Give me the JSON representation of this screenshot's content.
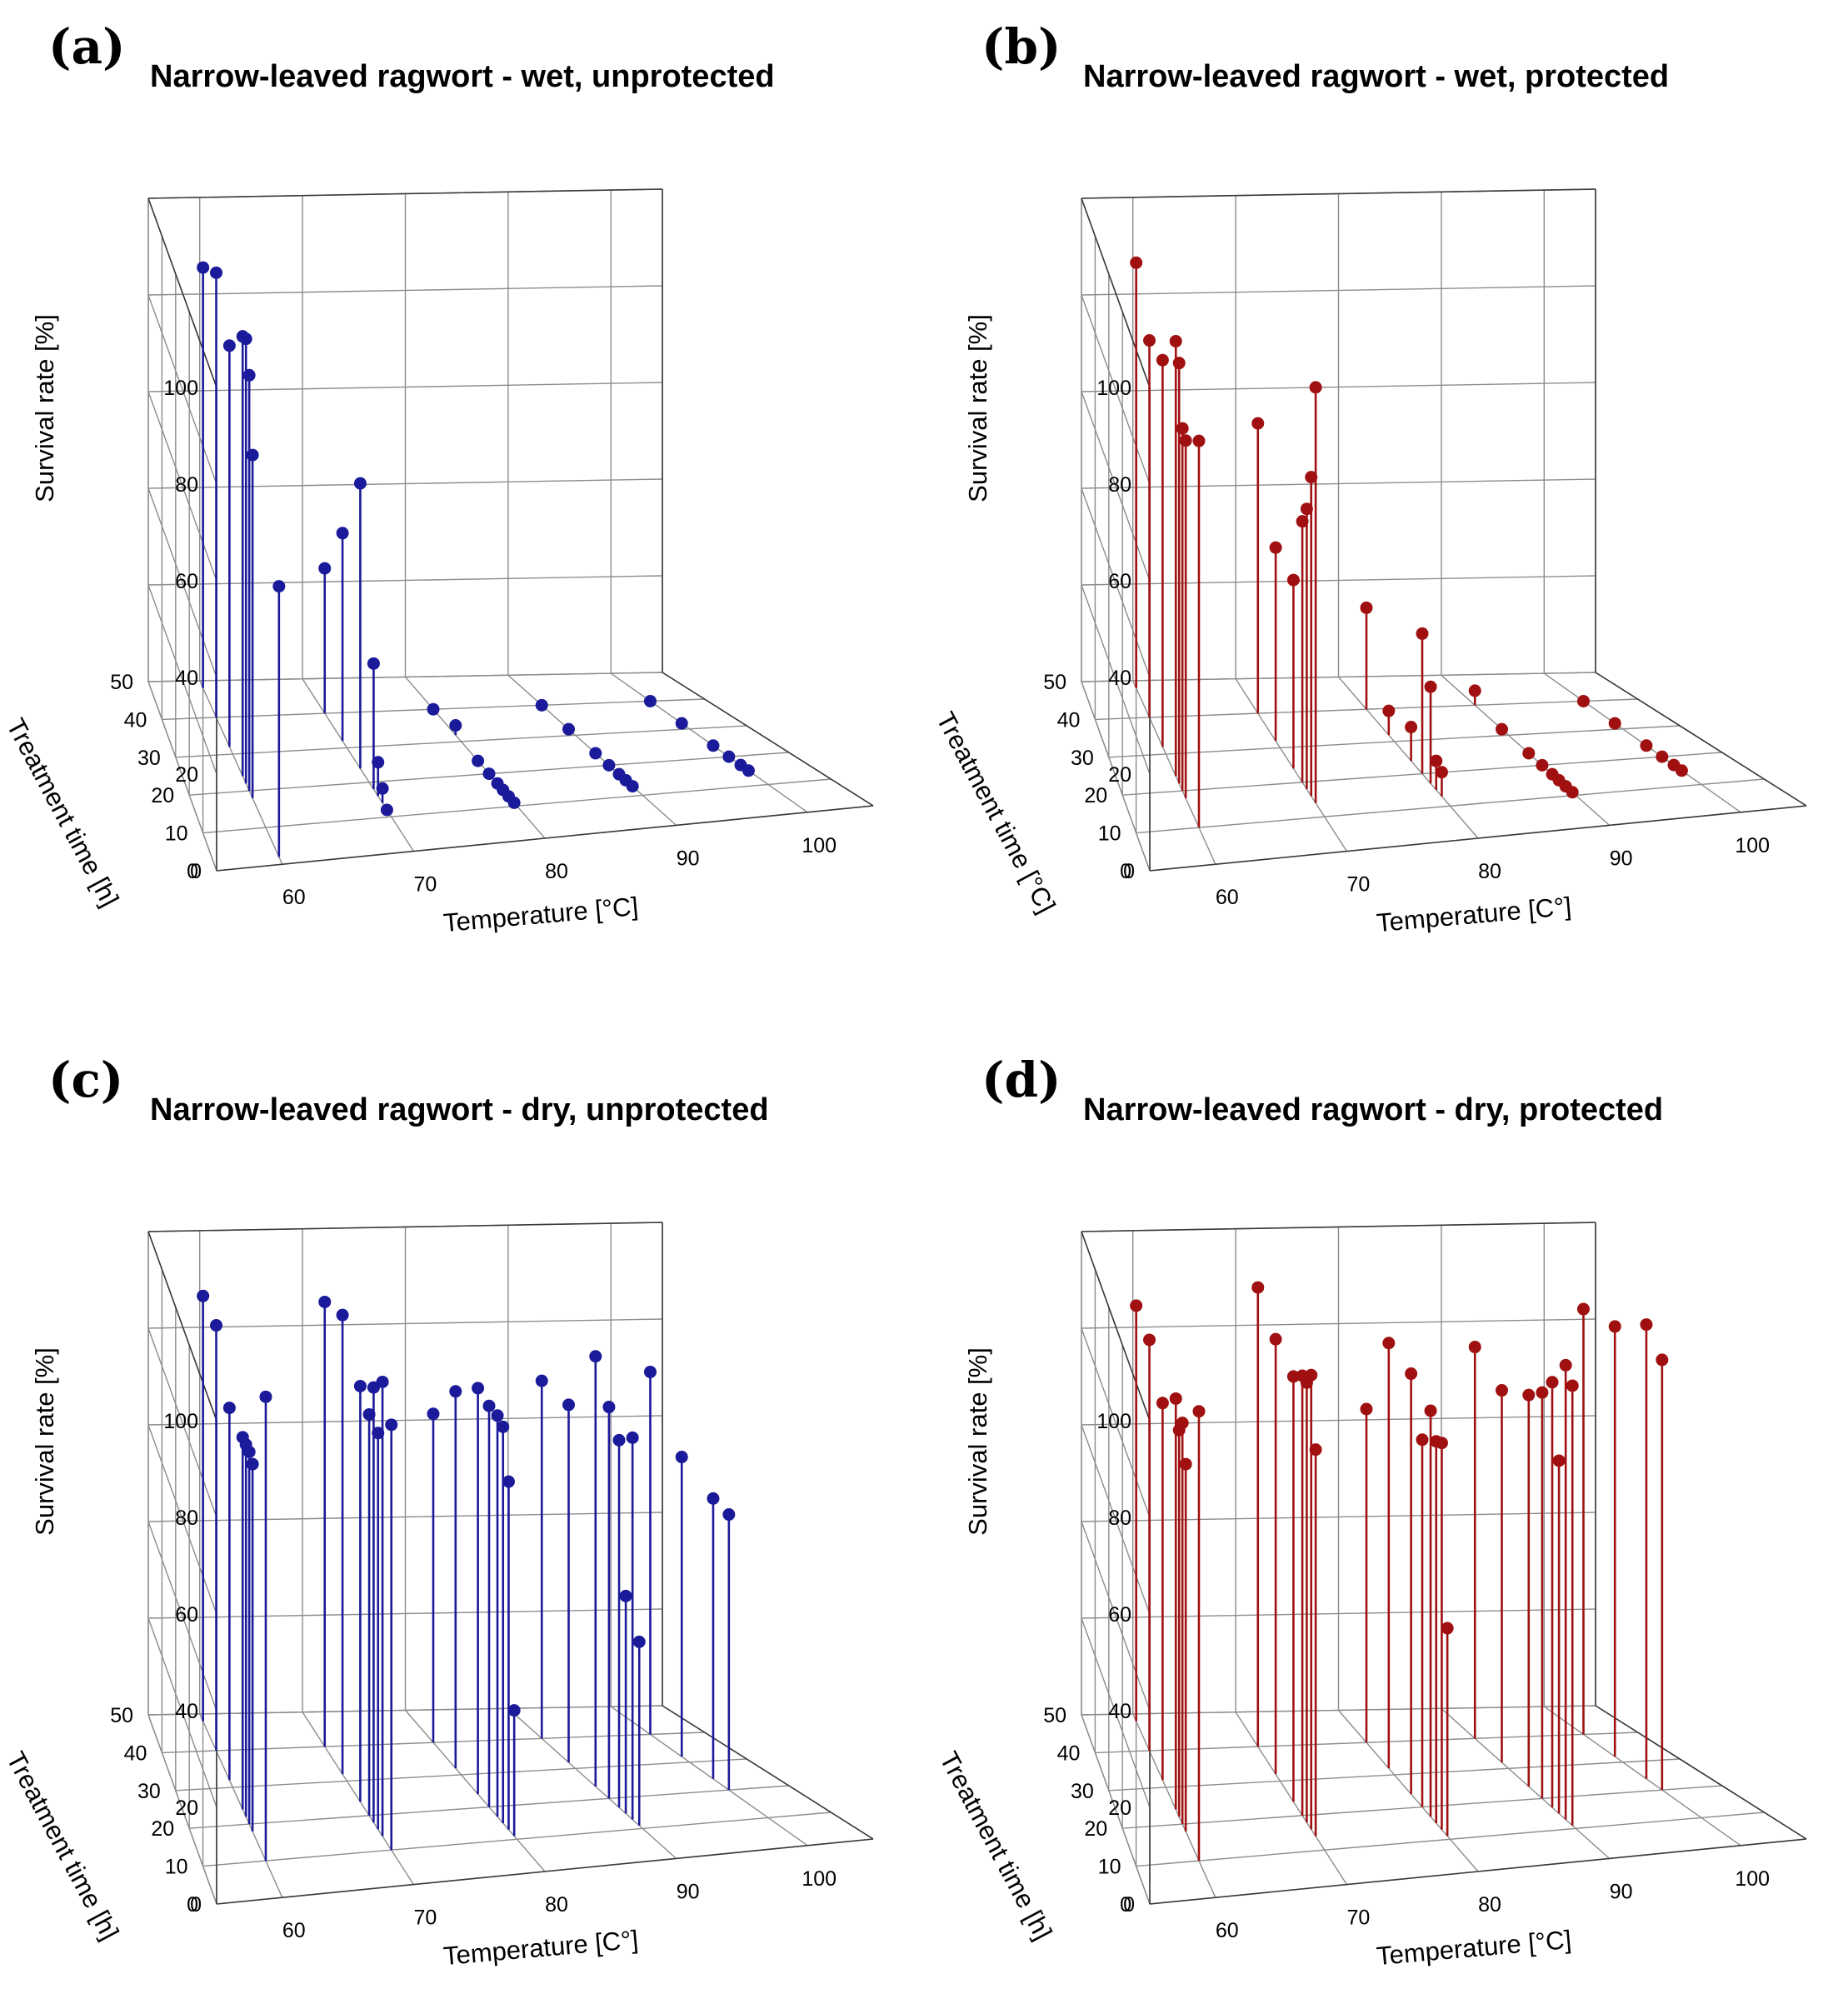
{
  "chart_data": [
    {
      "id": "a",
      "panel_label": "(a)",
      "type": "3d-stem",
      "title": "Narrow-leaved ragwort - wet, unprotected",
      "xlabel": "Temperature [°C]",
      "ylabel": "Treatment time [h]",
      "zlabel": "Survival rate [%]",
      "x_ticks": [
        "60",
        "70",
        "80",
        "90",
        "100"
      ],
      "y_ticks": [
        "0",
        "10",
        "20",
        "30",
        "40",
        "50"
      ],
      "z_ticks": [
        "0",
        "20",
        "40",
        "60",
        "80",
        "100"
      ],
      "xlim": [
        55,
        105
      ],
      "ylim": [
        0,
        50
      ],
      "zlim": [
        0,
        100
      ],
      "color": "#1a1a9a",
      "series": [
        {
          "temperature": 60,
          "times": [
            48,
            40,
            32,
            24,
            22,
            20,
            18
          ],
          "survival": [
            87,
            92,
            83,
            91,
            92,
            86,
            71
          ]
        },
        {
          "temperature": 60,
          "times": [
            2
          ],
          "survival": [
            56
          ]
        },
        {
          "temperature": 70,
          "times": [
            40,
            32,
            24,
            18,
            16,
            14,
            12
          ],
          "survival": [
            30,
            43,
            59,
            26,
            7,
            3,
            0
          ]
        },
        {
          "temperature": 80,
          "times": [
            40,
            32,
            24,
            20,
            17,
            15,
            13,
            11
          ],
          "survival": [
            0,
            2,
            0,
            0,
            0,
            0,
            0,
            0
          ]
        },
        {
          "temperature": 90,
          "times": [
            40,
            32,
            24,
            20,
            17,
            15,
            13
          ],
          "survival": [
            0,
            0,
            0,
            0,
            0,
            0,
            0
          ]
        },
        {
          "temperature": 100,
          "times": [
            40,
            32,
            24,
            20,
            17,
            15
          ],
          "survival": [
            0,
            0,
            0,
            0,
            0,
            0
          ]
        }
      ]
    },
    {
      "id": "b",
      "panel_label": "(b)",
      "type": "3d-stem",
      "title": "Narrow-leaved ragwort - wet, protected",
      "xlabel": "Temperature [C°]",
      "ylabel": "Treatment time [°C]",
      "zlabel": "Survival rate [%]",
      "x_ticks": [
        "60",
        "70",
        "80",
        "90",
        "100"
      ],
      "y_ticks": [
        "0",
        "10",
        "20",
        "30",
        "40",
        "50"
      ],
      "z_ticks": [
        "0",
        "20",
        "40",
        "60",
        "80",
        "100"
      ],
      "xlim": [
        55,
        105
      ],
      "ylim": [
        0,
        50
      ],
      "zlim": [
        0,
        100
      ],
      "color": "#a01010",
      "series": [
        {
          "temperature": 60,
          "times": [
            48,
            40,
            32,
            24,
            22,
            20,
            18,
            10
          ],
          "survival": [
            88,
            78,
            80,
            90,
            87,
            75,
            74,
            80
          ]
        },
        {
          "temperature": 70,
          "times": [
            40,
            32,
            24,
            20,
            18,
            16,
            14
          ],
          "survival": [
            60,
            40,
            39,
            54,
            58,
            66,
            86
          ]
        },
        {
          "temperature": 80,
          "times": [
            40,
            32,
            24,
            20,
            17,
            15,
            13
          ],
          "survival": [
            21,
            5,
            7,
            29,
            20,
            6,
            5
          ]
        },
        {
          "temperature": 90,
          "times": [
            40,
            32,
            24,
            20,
            17,
            15,
            13,
            11
          ],
          "survival": [
            3,
            0,
            0,
            0,
            0,
            0,
            0,
            0
          ]
        },
        {
          "temperature": 100,
          "times": [
            40,
            32,
            24,
            20,
            17,
            15
          ],
          "survival": [
            0,
            0,
            0,
            0,
            0,
            0
          ]
        }
      ]
    },
    {
      "id": "c",
      "panel_label": "(c)",
      "type": "3d-stem",
      "title": "Narrow-leaved ragwort - dry, unprotected",
      "xlabel": "Temperature [C°]",
      "ylabel": "Treatment time [h]",
      "zlabel": "Survival rate [%]",
      "x_ticks": [
        "60",
        "70",
        "80",
        "90",
        "100"
      ],
      "y_ticks": [
        "0",
        "10",
        "20",
        "30",
        "40",
        "50"
      ],
      "z_ticks": [
        "0",
        "20",
        "40",
        "60",
        "80",
        "100"
      ],
      "xlim": [
        55,
        105
      ],
      "ylim": [
        0,
        50
      ],
      "zlim": [
        0,
        100
      ],
      "color": "#1a1a9a",
      "series": [
        {
          "temperature": 60,
          "times": [
            48,
            40,
            32,
            24,
            22,
            20,
            18,
            10
          ],
          "survival": [
            88,
            88,
            77,
            77,
            77,
            77,
            76,
            96
          ]
        },
        {
          "temperature": 70,
          "times": [
            40,
            32,
            24,
            20,
            18,
            16,
            14,
            10
          ],
          "survival": [
            92,
            95,
            86,
            83,
            90,
            82,
            94,
            88
          ]
        },
        {
          "temperature": 80,
          "times": [
            40,
            32,
            24,
            20,
            17,
            15,
            13,
            11
          ],
          "survival": [
            68,
            78,
            84,
            83,
            83,
            82,
            72,
            26
          ]
        },
        {
          "temperature": 90,
          "times": [
            40,
            32,
            24,
            20,
            17,
            15,
            13,
            11
          ],
          "survival": [
            74,
            74,
            89,
            81,
            76,
            45,
            79,
            38
          ]
        },
        {
          "temperature": 100,
          "times": [
            40,
            32,
            24,
            20
          ],
          "survival": [
            75,
            62,
            58,
            57
          ]
        }
      ]
    },
    {
      "id": "d",
      "panel_label": "(d)",
      "type": "3d-stem",
      "title": "Narrow-leaved ragwort - dry, protected",
      "xlabel": "Temperature [°C]",
      "ylabel": "Treatment time [h]",
      "zlabel": "Survival rate [%]",
      "x_ticks": [
        "60",
        "70",
        "80",
        "90",
        "100"
      ],
      "y_ticks": [
        "0",
        "10",
        "20",
        "30",
        "40",
        "50"
      ],
      "z_ticks": [
        "0",
        "20",
        "40",
        "60",
        "80",
        "100"
      ],
      "xlim": [
        55,
        105
      ],
      "ylim": [
        0,
        50
      ],
      "zlim": [
        0,
        100
      ],
      "color": "#a01010",
      "series": [
        {
          "temperature": 60,
          "times": [
            48,
            40,
            32,
            24,
            22,
            20,
            18,
            10
          ],
          "survival": [
            86,
            85,
            78,
            85,
            80,
            83,
            76,
            93
          ]
        },
        {
          "temperature": 70,
          "times": [
            40,
            32,
            24,
            20,
            18,
            16,
            14
          ],
          "survival": [
            95,
            90,
            88,
            91,
            91,
            94,
            80
          ]
        },
        {
          "temperature": 80,
          "times": [
            40,
            32,
            24,
            20,
            17,
            15,
            13,
            11
          ],
          "survival": [
            69,
            88,
            87,
            76,
            84,
            79,
            80,
            43
          ]
        },
        {
          "temperature": 90,
          "times": [
            40,
            32,
            24,
            20,
            17,
            15,
            13,
            11
          ],
          "survival": [
            81,
            77,
            81,
            84,
            88,
            73,
            94,
            91
          ]
        },
        {
          "temperature": 100,
          "times": [
            40,
            32,
            24,
            20
          ],
          "survival": [
            88,
            89,
            94,
            89
          ]
        }
      ]
    }
  ]
}
